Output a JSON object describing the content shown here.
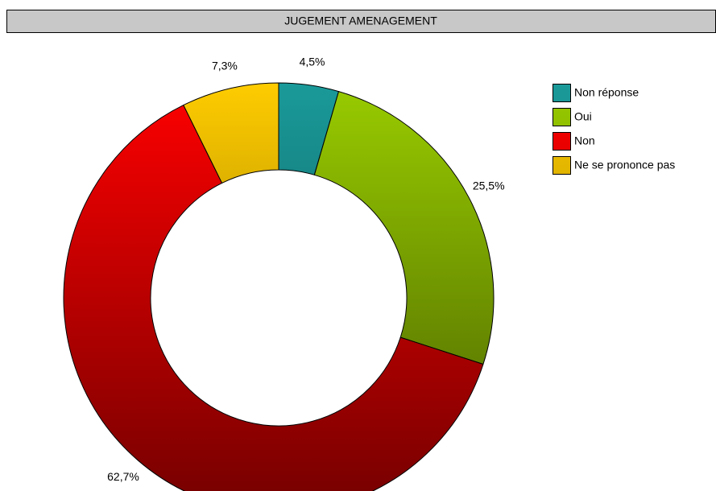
{
  "chart_data": {
    "type": "donut",
    "title": "JUGEMENT AMENAGEMENT",
    "categories": [
      "Non réponse",
      "Oui",
      "Non",
      "Ne se prononce pas"
    ],
    "values": [
      4.5,
      25.5,
      62.7,
      7.3
    ],
    "value_labels": [
      "4,5%",
      "25,5%",
      "62,7%",
      "7,3%"
    ],
    "colors": [
      "#1a9a9a",
      "#99cc00",
      "#ff0000",
      "#ffcc00"
    ],
    "legend": "right"
  }
}
